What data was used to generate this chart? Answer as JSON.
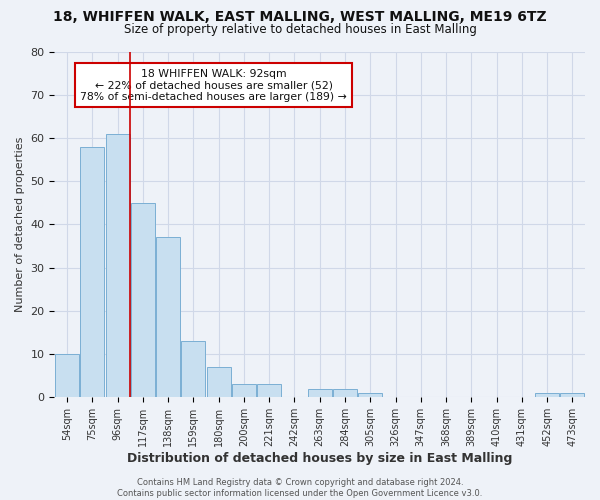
{
  "title": "18, WHIFFEN WALK, EAST MALLING, WEST MALLING, ME19 6TZ",
  "subtitle": "Size of property relative to detached houses in East Malling",
  "xlabel": "Distribution of detached houses by size in East Malling",
  "ylabel": "Number of detached properties",
  "bar_color": "#c8dff0",
  "bar_edge_color": "#7bafd4",
  "grid_color": "#d0d8e8",
  "background_color": "#eef2f8",
  "tick_labels": [
    "54sqm",
    "75sqm",
    "96sqm",
    "117sqm",
    "138sqm",
    "159sqm",
    "180sqm",
    "200sqm",
    "221sqm",
    "242sqm",
    "263sqm",
    "284sqm",
    "305sqm",
    "326sqm",
    "347sqm",
    "368sqm",
    "389sqm",
    "410sqm",
    "431sqm",
    "452sqm",
    "473sqm"
  ],
  "bar_values": [
    10,
    58,
    61,
    45,
    37,
    13,
    7,
    3,
    3,
    0,
    2,
    2,
    1,
    0,
    0,
    0,
    0,
    0,
    0,
    1,
    1
  ],
  "ylim": [
    0,
    80
  ],
  "yticks": [
    0,
    10,
    20,
    30,
    40,
    50,
    60,
    70,
    80
  ],
  "property_line_color": "#cc0000",
  "annotation_line1": "18 WHIFFEN WALK: 92sqm",
  "annotation_line2": "← 22% of detached houses are smaller (52)",
  "annotation_line3": "78% of semi-detached houses are larger (189) →",
  "annotation_box_color": "#ffffff",
  "annotation_box_edge": "#cc0000",
  "footer_text": "Contains HM Land Registry data © Crown copyright and database right 2024.\nContains public sector information licensed under the Open Government Licence v3.0."
}
